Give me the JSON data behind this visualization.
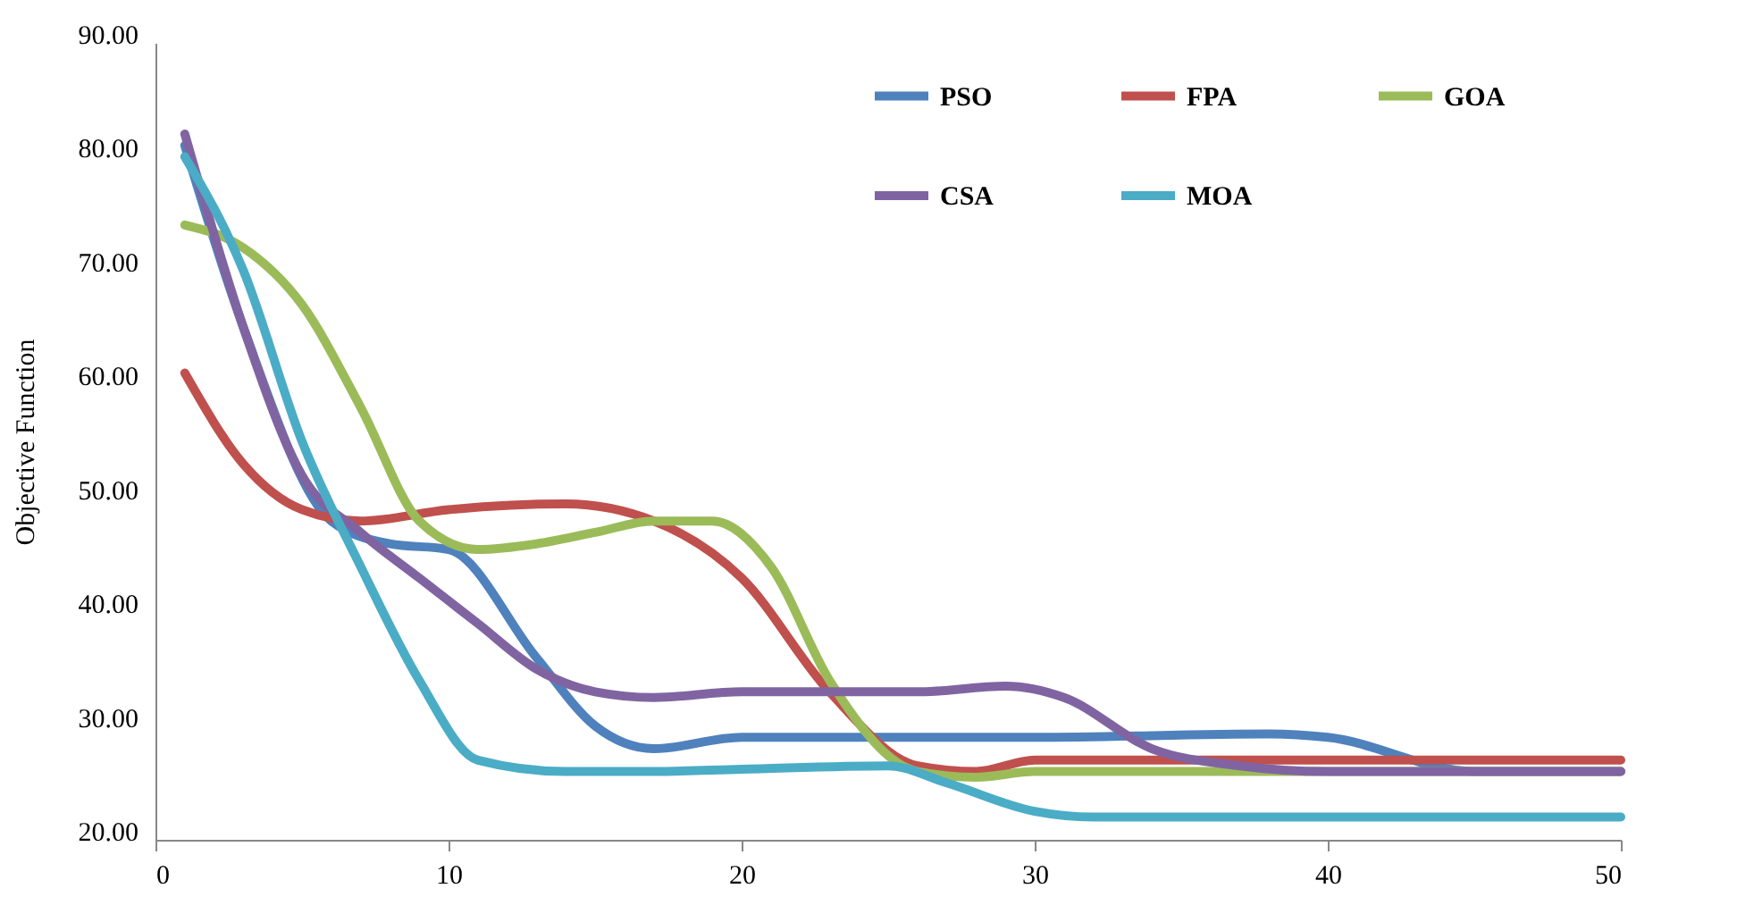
{
  "chart_data": {
    "type": "line",
    "ylabel": "Objective Function",
    "xlim": [
      0,
      50
    ],
    "ylim": [
      20,
      90
    ],
    "xticks": [
      0,
      10,
      20,
      30,
      40,
      50
    ],
    "yticks": [
      {
        "value": 20,
        "label": "20.00"
      },
      {
        "value": 30,
        "label": "30.00"
      },
      {
        "value": 40,
        "label": "40.00"
      },
      {
        "value": 50,
        "label": "50.00"
      },
      {
        "value": 60,
        "label": "60.00"
      },
      {
        "value": 70,
        "label": "70.00"
      },
      {
        "value": 80,
        "label": "80.00"
      },
      {
        "value": 90,
        "label": "90.00"
      }
    ],
    "grid": false,
    "legend": "top right",
    "marker": "none",
    "line_style": "solid",
    "series": [
      {
        "name": "PSO",
        "color": "#4f81bd",
        "x": [
          1,
          3,
          6,
          8,
          10,
          13,
          15,
          17,
          20,
          30,
          38,
          40,
          45,
          50
        ],
        "values": [
          81,
          65,
          48,
          46,
          45.5,
          36,
          30,
          28,
          29,
          29,
          29.3,
          29,
          26,
          26
        ]
      },
      {
        "name": "FPA",
        "color": "#c0504d",
        "x": [
          1,
          3,
          5,
          7,
          10,
          14,
          17,
          20,
          23,
          26,
          28,
          30,
          40,
          50
        ],
        "values": [
          61,
          53,
          49,
          48,
          49,
          49.5,
          48,
          43,
          33,
          26.5,
          26,
          27,
          27,
          27
        ]
      },
      {
        "name": "GOA",
        "color": "#9bbb59",
        "x": [
          1,
          3,
          5,
          7,
          9,
          11,
          13,
          15,
          17,
          19,
          21,
          23,
          26,
          28,
          30,
          40,
          50
        ],
        "values": [
          74,
          72,
          67,
          58,
          48,
          45.5,
          46,
          47,
          48,
          48,
          44,
          34,
          26,
          25.5,
          26,
          26,
          26
        ]
      },
      {
        "name": "CSA",
        "color": "#8064a2",
        "x": [
          1,
          3,
          5,
          7,
          9,
          11,
          13,
          15,
          17,
          20,
          26,
          29,
          31,
          34,
          37,
          40,
          50
        ],
        "values": [
          82,
          65,
          52,
          47,
          43,
          39,
          35,
          33,
          32.5,
          33,
          33,
          33.5,
          32.5,
          28,
          26.5,
          26,
          26
        ]
      },
      {
        "name": "MOA",
        "color": "#4bacc6",
        "x": [
          1,
          3,
          5,
          7,
          9,
          11,
          14,
          17,
          20,
          25,
          27,
          30,
          32,
          40,
          50
        ],
        "values": [
          80,
          70,
          55,
          44,
          34,
          27,
          26,
          26,
          26.2,
          26.5,
          25,
          22.5,
          22,
          22,
          22
        ]
      }
    ]
  }
}
